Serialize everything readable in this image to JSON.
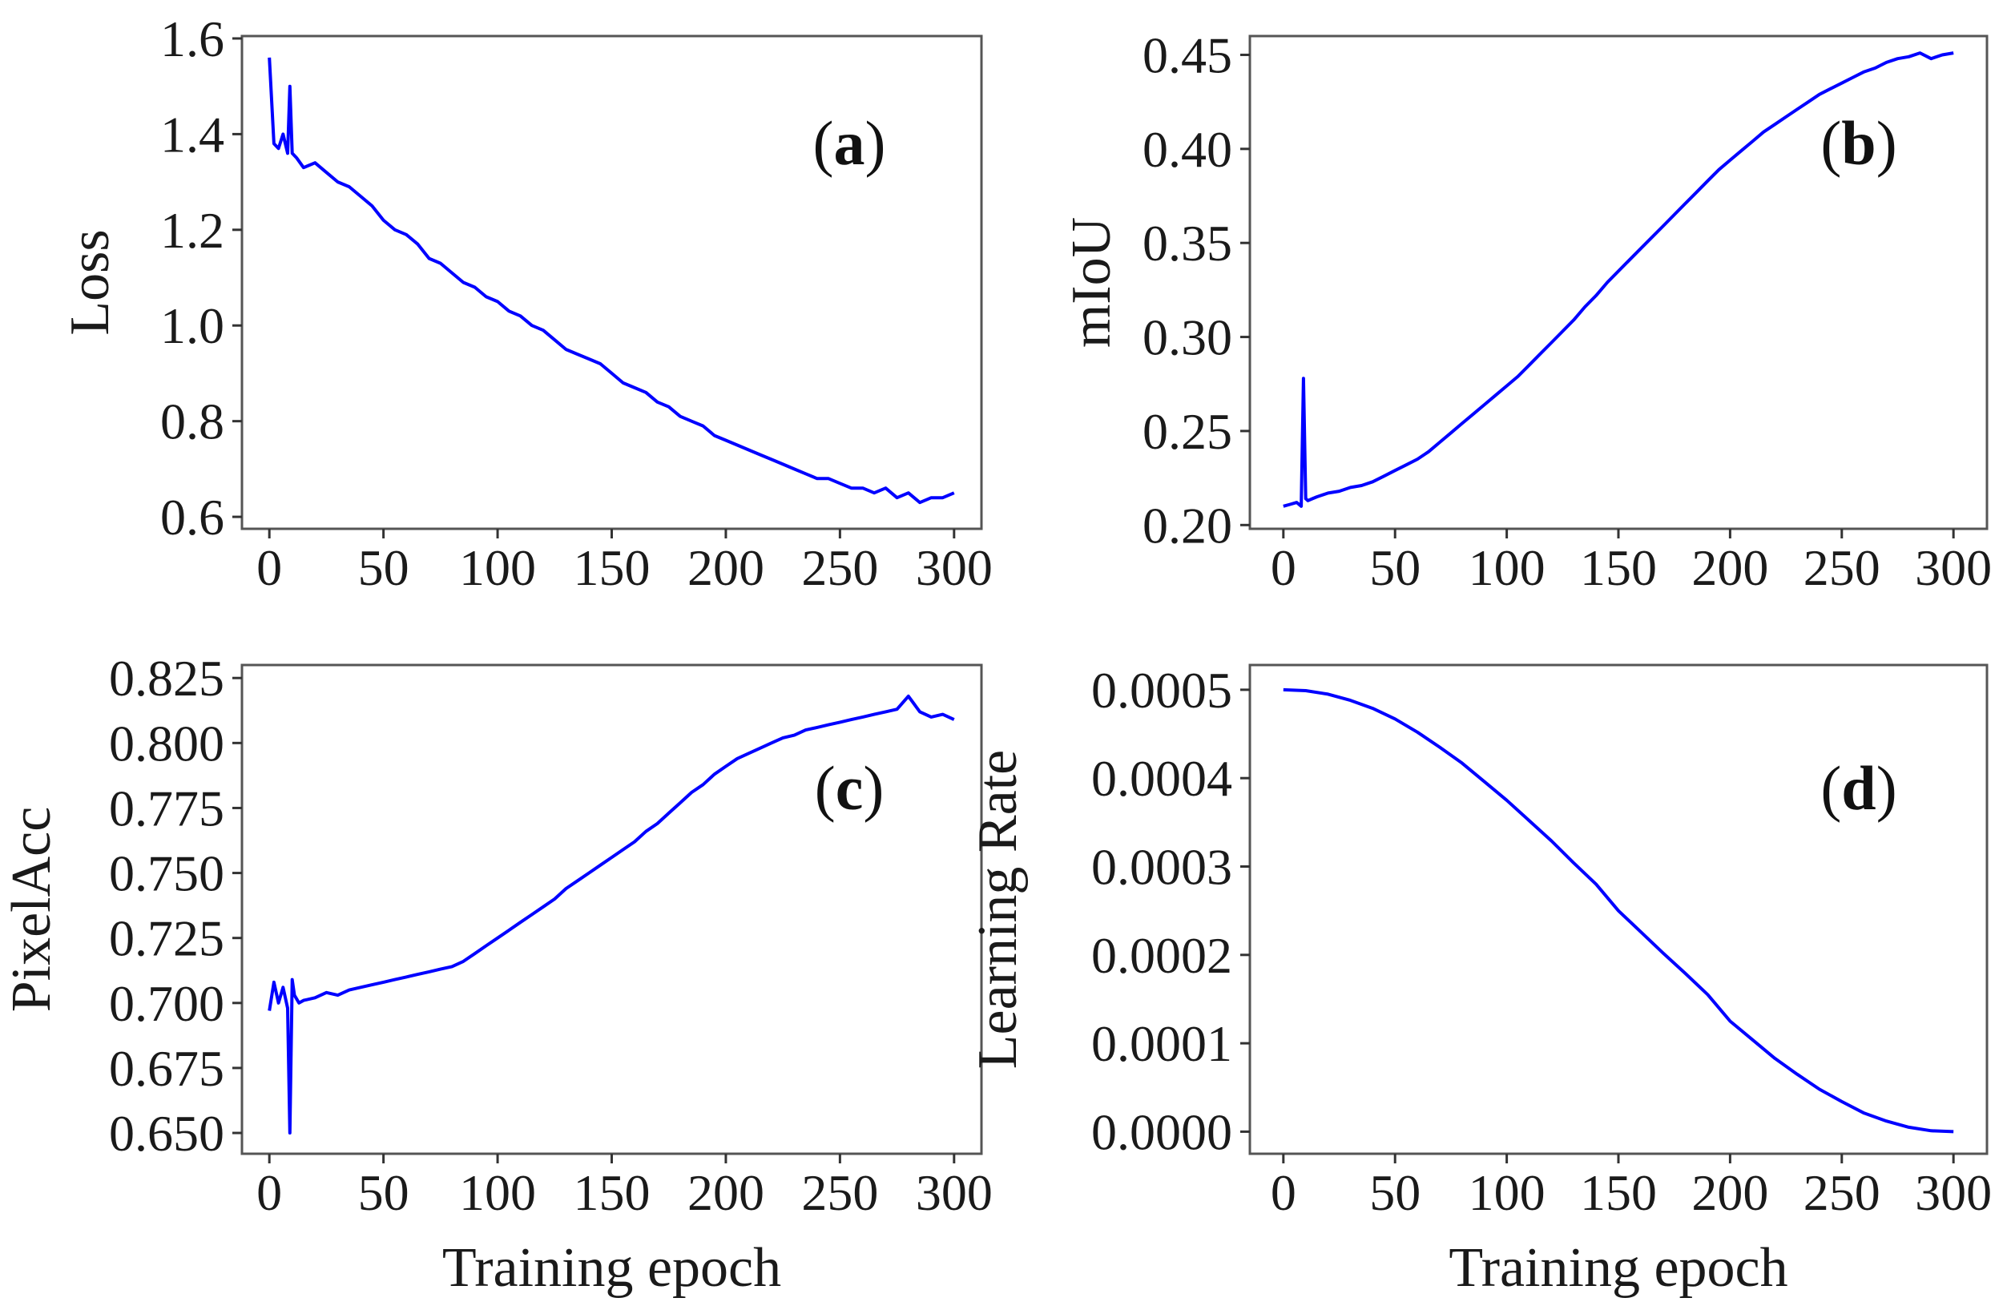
{
  "chart_data": [
    {
      "id": "a",
      "type": "line",
      "panel_label": "a",
      "ylabel": "Loss",
      "xlabel": "",
      "xlim": [
        -12,
        312
      ],
      "ylim": [
        0.575,
        1.605
      ],
      "xticks": [
        0,
        50,
        100,
        150,
        200,
        250,
        300
      ],
      "xtick_labels": [
        "0",
        "50",
        "100",
        "150",
        "200",
        "250",
        "300"
      ],
      "yticks": [
        0.6,
        0.8,
        1.0,
        1.2,
        1.4,
        1.6
      ],
      "ytick_labels": [
        "0.6",
        "0.8",
        "1.0",
        "1.2",
        "1.4",
        "1.6"
      ],
      "color": "#0000ff",
      "series": [
        {
          "name": "Loss",
          "x": [
            0,
            2,
            4,
            6,
            8,
            9,
            10,
            12,
            15,
            20,
            25,
            30,
            35,
            40,
            45,
            50,
            55,
            60,
            65,
            70,
            75,
            80,
            85,
            90,
            95,
            100,
            105,
            110,
            115,
            120,
            125,
            130,
            135,
            140,
            145,
            150,
            155,
            160,
            165,
            170,
            175,
            180,
            185,
            190,
            195,
            200,
            205,
            210,
            215,
            220,
            225,
            230,
            235,
            240,
            245,
            250,
            255,
            260,
            265,
            270,
            275,
            280,
            285,
            290,
            295,
            300
          ],
          "y": [
            1.56,
            1.38,
            1.37,
            1.4,
            1.36,
            1.5,
            1.36,
            1.35,
            1.33,
            1.34,
            1.32,
            1.3,
            1.29,
            1.27,
            1.25,
            1.22,
            1.2,
            1.19,
            1.17,
            1.14,
            1.13,
            1.11,
            1.09,
            1.08,
            1.06,
            1.05,
            1.03,
            1.02,
            1.0,
            0.99,
            0.97,
            0.95,
            0.94,
            0.93,
            0.92,
            0.9,
            0.88,
            0.87,
            0.86,
            0.84,
            0.83,
            0.81,
            0.8,
            0.79,
            0.77,
            0.76,
            0.75,
            0.74,
            0.73,
            0.72,
            0.71,
            0.7,
            0.69,
            0.68,
            0.68,
            0.67,
            0.66,
            0.66,
            0.65,
            0.66,
            0.64,
            0.65,
            0.63,
            0.64,
            0.64,
            0.65
          ]
        }
      ]
    },
    {
      "id": "b",
      "type": "line",
      "panel_label": "b",
      "ylabel": "mIoU",
      "xlabel": "",
      "xlim": [
        -15,
        315
      ],
      "ylim": [
        0.198,
        0.46
      ],
      "xticks": [
        0,
        50,
        100,
        150,
        200,
        250,
        300
      ],
      "xtick_labels": [
        "0",
        "50",
        "100",
        "150",
        "200",
        "250",
        "300"
      ],
      "yticks": [
        0.2,
        0.25,
        0.3,
        0.35,
        0.4,
        0.45
      ],
      "ytick_labels": [
        "0.20",
        "0.25",
        "0.30",
        "0.35",
        "0.40",
        "0.45"
      ],
      "color": "#0000ff",
      "series": [
        {
          "name": "mIoU",
          "x": [
            0,
            3,
            6,
            8,
            9,
            10,
            11,
            13,
            15,
            20,
            25,
            30,
            35,
            40,
            45,
            50,
            55,
            60,
            65,
            70,
            75,
            80,
            85,
            90,
            95,
            100,
            105,
            110,
            115,
            120,
            125,
            130,
            135,
            140,
            145,
            150,
            155,
            160,
            165,
            170,
            175,
            180,
            185,
            190,
            195,
            200,
            205,
            210,
            215,
            220,
            225,
            230,
            235,
            240,
            245,
            250,
            255,
            260,
            265,
            270,
            275,
            280,
            285,
            290,
            295,
            300
          ],
          "y": [
            0.21,
            0.211,
            0.212,
            0.21,
            0.278,
            0.214,
            0.213,
            0.214,
            0.215,
            0.217,
            0.218,
            0.22,
            0.221,
            0.223,
            0.226,
            0.229,
            0.232,
            0.235,
            0.239,
            0.244,
            0.249,
            0.254,
            0.259,
            0.264,
            0.269,
            0.274,
            0.279,
            0.285,
            0.291,
            0.297,
            0.303,
            0.309,
            0.316,
            0.322,
            0.329,
            0.335,
            0.341,
            0.347,
            0.353,
            0.359,
            0.365,
            0.371,
            0.377,
            0.383,
            0.389,
            0.394,
            0.399,
            0.404,
            0.409,
            0.413,
            0.417,
            0.421,
            0.425,
            0.429,
            0.432,
            0.435,
            0.438,
            0.441,
            0.443,
            0.446,
            0.448,
            0.449,
            0.451,
            0.448,
            0.45,
            0.451
          ]
        }
      ]
    },
    {
      "id": "c",
      "type": "line",
      "panel_label": "c",
      "ylabel": "PixelAcc",
      "xlabel": "Training epoch",
      "xlim": [
        -12,
        312
      ],
      "ylim": [
        0.642,
        0.83
      ],
      "xticks": [
        0,
        50,
        100,
        150,
        200,
        250,
        300
      ],
      "xtick_labels": [
        "0",
        "50",
        "100",
        "150",
        "200",
        "250",
        "300"
      ],
      "yticks": [
        0.65,
        0.675,
        0.7,
        0.725,
        0.75,
        0.775,
        0.8,
        0.825
      ],
      "ytick_labels": [
        "0.650",
        "0.675",
        "0.700",
        "0.725",
        "0.750",
        "0.775",
        "0.800",
        "0.825"
      ],
      "color": "#0000ff",
      "series": [
        {
          "name": "PixelAcc",
          "x": [
            0,
            2,
            4,
            6,
            8,
            9,
            10,
            11,
            13,
            15,
            20,
            25,
            30,
            35,
            40,
            45,
            50,
            55,
            60,
            65,
            70,
            75,
            80,
            85,
            90,
            95,
            100,
            105,
            110,
            115,
            120,
            125,
            130,
            135,
            140,
            145,
            150,
            155,
            160,
            165,
            170,
            175,
            180,
            185,
            190,
            195,
            200,
            205,
            210,
            215,
            220,
            225,
            230,
            235,
            240,
            245,
            250,
            255,
            260,
            265,
            270,
            275,
            280,
            285,
            290,
            295,
            300
          ],
          "y": [
            0.697,
            0.708,
            0.7,
            0.706,
            0.698,
            0.65,
            0.709,
            0.703,
            0.7,
            0.701,
            0.702,
            0.704,
            0.703,
            0.705,
            0.706,
            0.707,
            0.708,
            0.709,
            0.71,
            0.711,
            0.712,
            0.713,
            0.714,
            0.716,
            0.719,
            0.722,
            0.725,
            0.728,
            0.731,
            0.734,
            0.737,
            0.74,
            0.744,
            0.747,
            0.75,
            0.753,
            0.756,
            0.759,
            0.762,
            0.766,
            0.769,
            0.773,
            0.777,
            0.781,
            0.784,
            0.788,
            0.791,
            0.794,
            0.796,
            0.798,
            0.8,
            0.802,
            0.803,
            0.805,
            0.806,
            0.807,
            0.808,
            0.809,
            0.81,
            0.811,
            0.812,
            0.813,
            0.818,
            0.812,
            0.81,
            0.811,
            0.809
          ]
        }
      ]
    },
    {
      "id": "d",
      "type": "line",
      "panel_label": "d",
      "ylabel": "Learning Rate",
      "xlabel": "Training epoch",
      "xlim": [
        -15,
        315
      ],
      "ylim": [
        -2.5e-05,
        0.000528
      ],
      "xticks": [
        0,
        50,
        100,
        150,
        200,
        250,
        300
      ],
      "xtick_labels": [
        "0",
        "50",
        "100",
        "150",
        "200",
        "250",
        "300"
      ],
      "yticks": [
        0,
        0.0001,
        0.0002,
        0.0003,
        0.0004,
        0.0005
      ],
      "ytick_labels": [
        "0.0000",
        "0.0001",
        "0.0002",
        "0.0003",
        "0.0004",
        "0.0005"
      ],
      "color": "#0000ff",
      "series": [
        {
          "name": "Learning Rate",
          "x": [
            0,
            10,
            20,
            30,
            40,
            50,
            60,
            70,
            80,
            90,
            100,
            110,
            120,
            130,
            140,
            150,
            160,
            170,
            180,
            190,
            200,
            210,
            220,
            230,
            240,
            250,
            260,
            270,
            280,
            290,
            300
          ],
          "y": [
            0.0005,
            0.000499,
            0.000495,
            0.000488,
            0.000479,
            0.000467,
            0.000452,
            0.000435,
            0.000417,
            0.000396,
            0.000375,
            0.000352,
            0.000329,
            0.000304,
            0.00028,
            0.00025,
            0.000226,
            0.000202,
            0.000179,
            0.000155,
            0.000125,
            0.000104,
            8.3e-05,
            6.5e-05,
            4.8e-05,
            3.4e-05,
            2.1e-05,
            1.2e-05,
            5e-06,
            1e-06,
            0.0
          ]
        }
      ]
    }
  ]
}
